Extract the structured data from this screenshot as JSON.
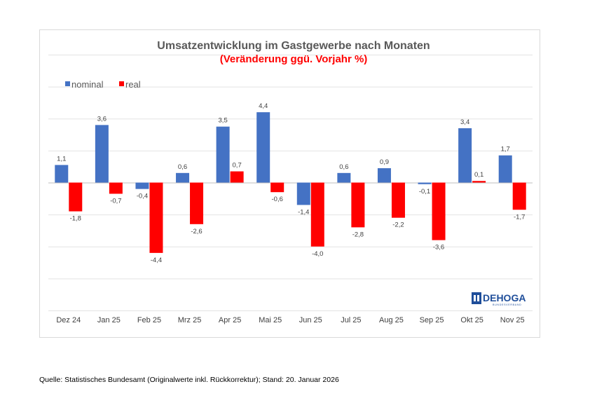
{
  "chart_data": {
    "type": "bar",
    "title": "Umsatzentwicklung im Gastgewerbe nach Monaten",
    "subtitle": "(Veränderung ggü. Vorjahr %)",
    "categories": [
      "Dez 24",
      "Jan 25",
      "Feb 25",
      "Mrz 25",
      "Apr 25",
      "Mai 25",
      "Jun 25",
      "Jul 25",
      "Aug 25",
      "Sep 25",
      "Okt 25",
      "Nov 25"
    ],
    "series": [
      {
        "name": "nominal",
        "color": "#4472c4",
        "values": [
          1.1,
          3.6,
          -0.4,
          0.6,
          3.5,
          4.4,
          -1.4,
          0.6,
          0.9,
          -0.1,
          3.4,
          1.7
        ],
        "labels": [
          "1,1",
          "3,6",
          "-0,4",
          "0,6",
          "3,5",
          "4,4",
          "-1,4",
          "0,6",
          "0,9",
          "-0,1",
          "3,4",
          "1,7"
        ]
      },
      {
        "name": "real",
        "color": "#ff0000",
        "values": [
          -1.8,
          -0.7,
          -4.4,
          -2.6,
          0.7,
          -0.6,
          -4.0,
          -2.8,
          -2.2,
          -3.6,
          0.1,
          -1.7
        ],
        "labels": [
          "-1,8",
          "-0,7",
          "-4,4",
          "-2,6",
          "0,7",
          "-0,6",
          "-4,0",
          "-2,8",
          "-2,2",
          "-3,6",
          "0,1",
          "-1,7"
        ]
      }
    ],
    "xlabel": "",
    "ylabel": "",
    "ylim": [
      -8,
      8
    ],
    "grid": true,
    "legend": "top-left"
  },
  "logo": {
    "name": "DEHOGA",
    "subtitle": "BUNDESVERBAND"
  },
  "source": "Quelle: Statistisches Bundesamt (Originalwerte inkl. Rückkorrektur); Stand: 20. Januar 2026"
}
